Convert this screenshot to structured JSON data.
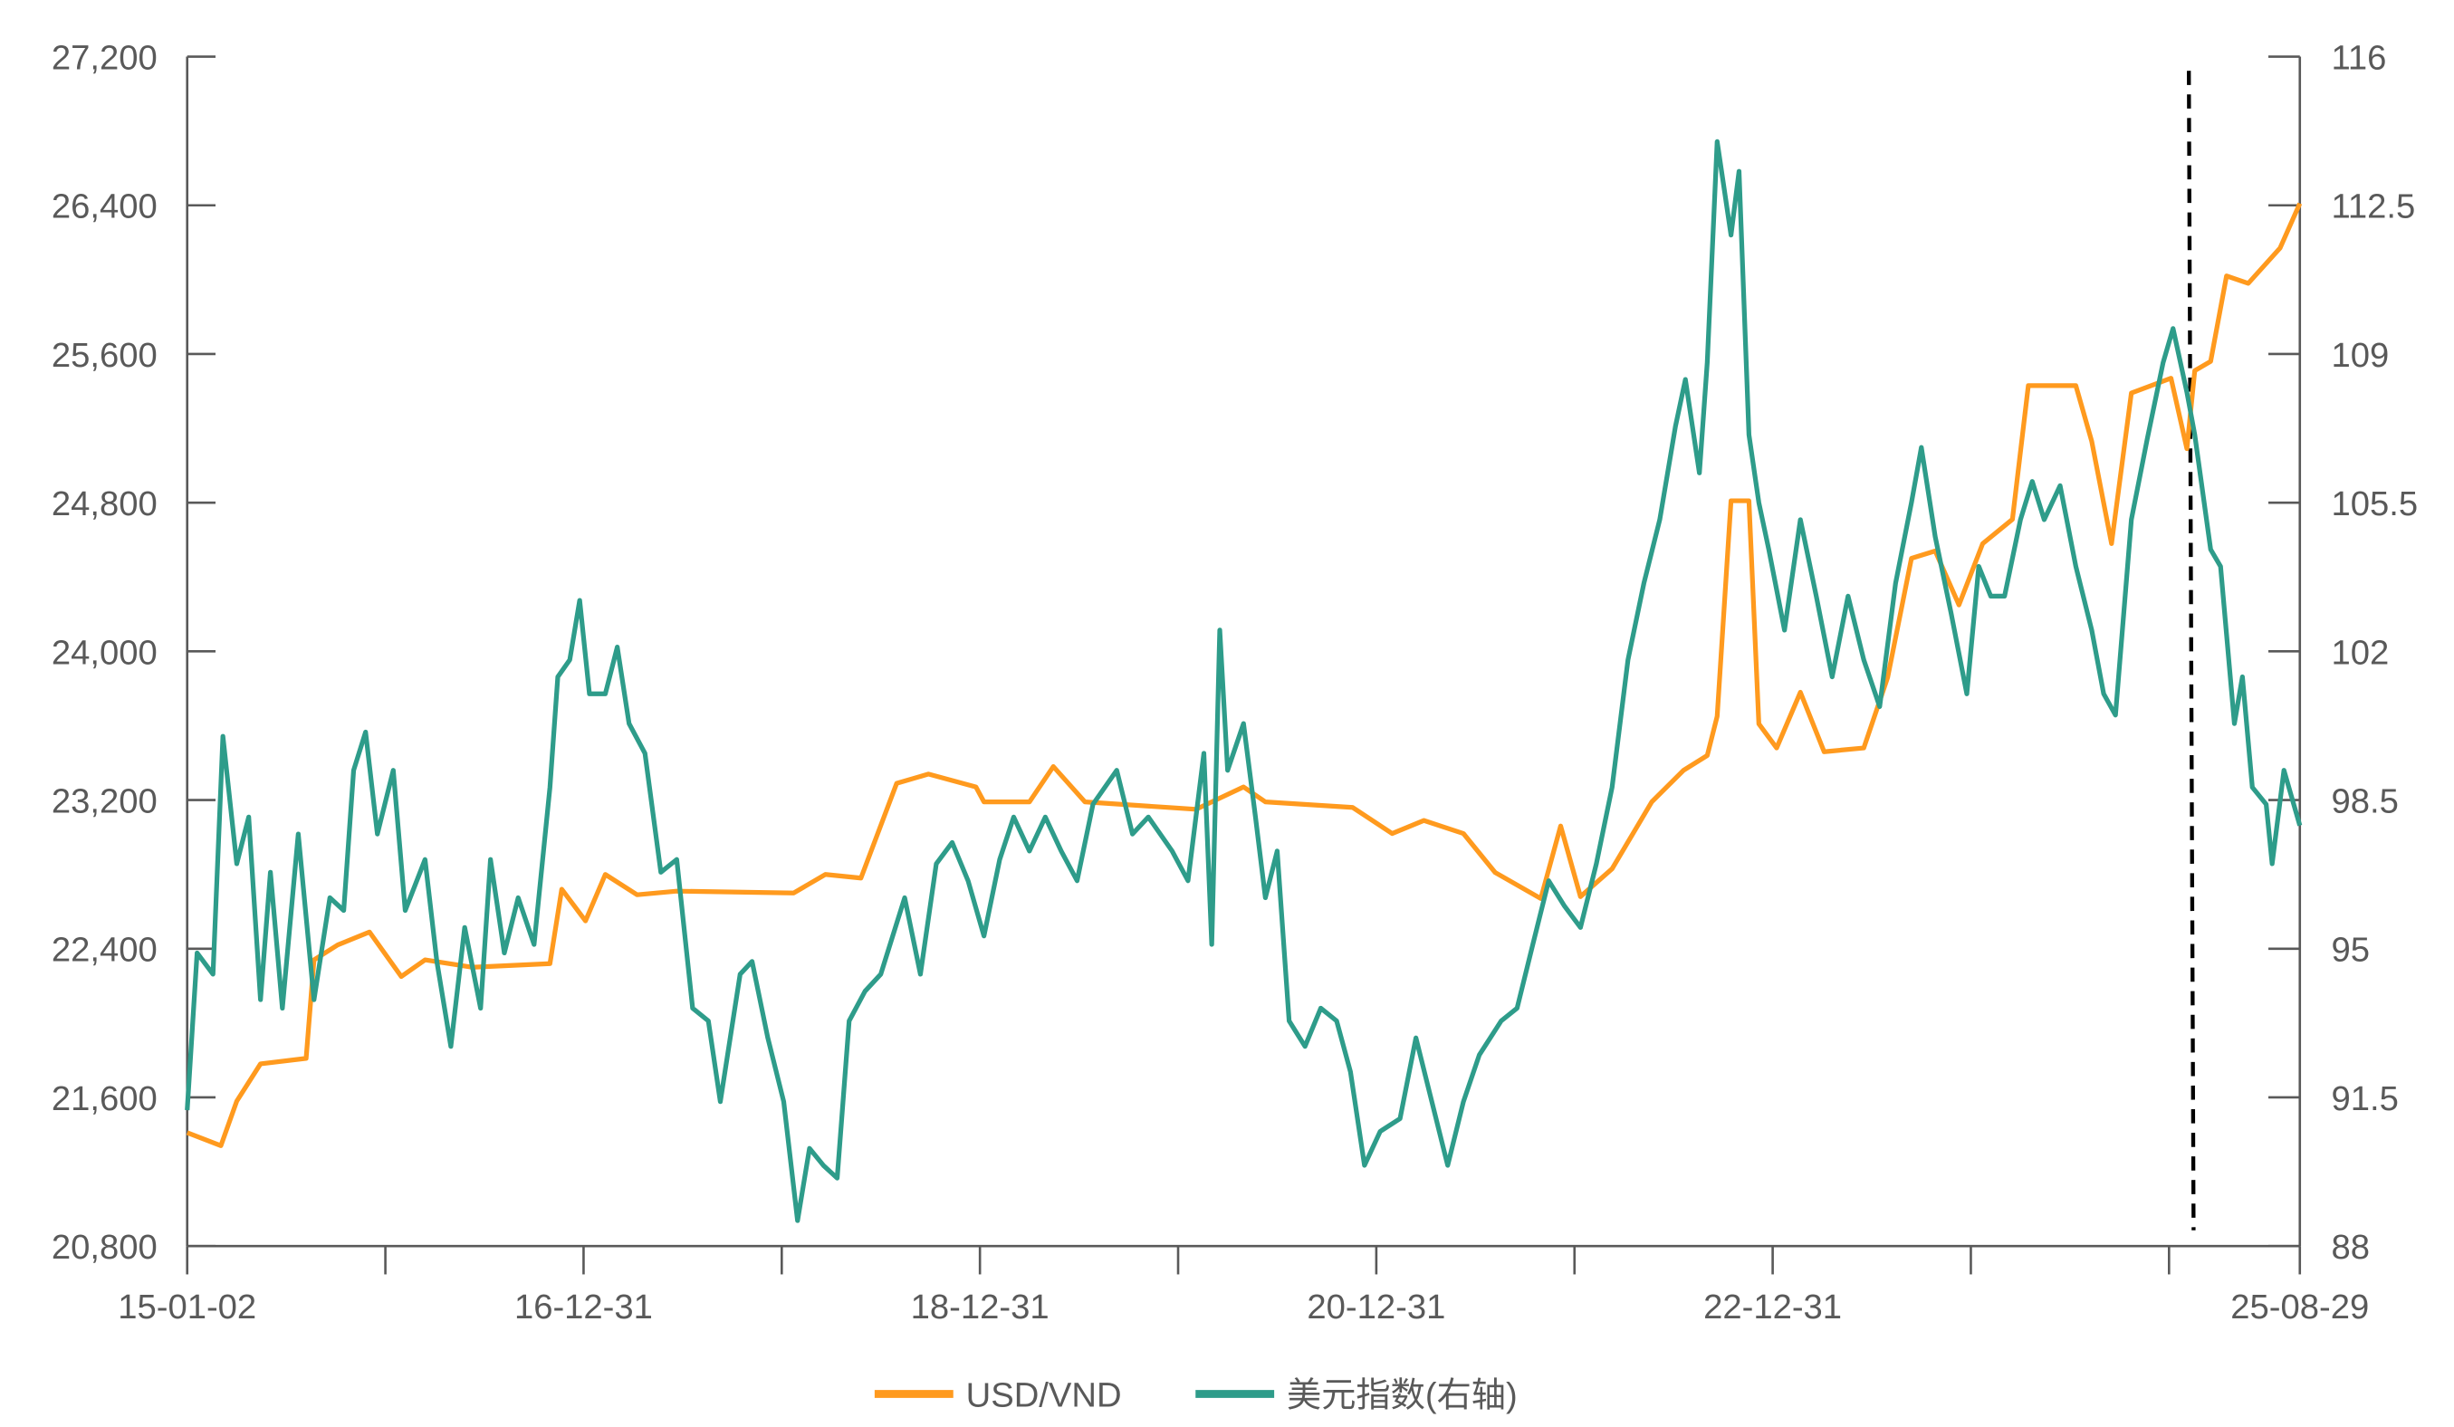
{
  "chart_data": {
    "type": "line",
    "title": "",
    "xlabel": "",
    "ylabel": "",
    "xlim": [
      2015.0,
      2025.66
    ],
    "ylim_left": [
      20800,
      27200
    ],
    "ylim_right": [
      88,
      116
    ],
    "left_ticks": [
      "20,800",
      "21,600",
      "22,400",
      "23,200",
      "24,000",
      "24,800",
      "25,600",
      "26,400",
      "27,200"
    ],
    "left_tick_values": [
      20800,
      21600,
      22400,
      23200,
      24000,
      24800,
      25600,
      26400,
      27200
    ],
    "right_ticks": [
      "88",
      "91.5",
      "95",
      "98.5",
      "102",
      "105.5",
      "109",
      "112.5",
      "116"
    ],
    "right_tick_values": [
      88,
      91.5,
      95,
      98.5,
      102,
      105.5,
      109,
      112.5,
      116
    ],
    "x_tick_values": [
      2015,
      2016,
      2017,
      2018,
      2019,
      2020,
      2021,
      2022,
      2023,
      2024,
      2025,
      2025.66
    ],
    "x_labels": [
      {
        "x": 2015.0,
        "label": "15-01-02"
      },
      {
        "x": 2017.0,
        "label": "16-12-31"
      },
      {
        "x": 2019.0,
        "label": "18-12-31"
      },
      {
        "x": 2021.0,
        "label": "20-12-31"
      },
      {
        "x": 2023.0,
        "label": "22-12-31"
      },
      {
        "x": 2025.66,
        "label": "25-08-29"
      }
    ],
    "marker_line_x": 2025.1,
    "legend_position": "bottom",
    "series": [
      {
        "name": "USD/VND",
        "axis": "left",
        "color": "#FF9A1E",
        "points": [
          [
            2015.0,
            21410
          ],
          [
            2015.17,
            21340
          ],
          [
            2015.25,
            21580
          ],
          [
            2015.37,
            21780
          ],
          [
            2015.6,
            21810
          ],
          [
            2015.64,
            22340
          ],
          [
            2015.76,
            22420
          ],
          [
            2015.92,
            22490
          ],
          [
            2016.08,
            22250
          ],
          [
            2016.2,
            22340
          ],
          [
            2016.44,
            22300
          ],
          [
            2016.83,
            22320
          ],
          [
            2016.89,
            22720
          ],
          [
            2017.01,
            22550
          ],
          [
            2017.11,
            22800
          ],
          [
            2017.27,
            22690
          ],
          [
            2017.47,
            22710
          ],
          [
            2018.06,
            22700
          ],
          [
            2018.22,
            22800
          ],
          [
            2018.4,
            22780
          ],
          [
            2018.58,
            23290
          ],
          [
            2018.74,
            23340
          ],
          [
            2018.98,
            23270
          ],
          [
            2019.02,
            23190
          ],
          [
            2019.25,
            23190
          ],
          [
            2019.37,
            23380
          ],
          [
            2019.53,
            23190
          ],
          [
            2020.09,
            23150
          ],
          [
            2020.33,
            23270
          ],
          [
            2020.44,
            23190
          ],
          [
            2020.88,
            23160
          ],
          [
            2021.08,
            23020
          ],
          [
            2021.24,
            23090
          ],
          [
            2021.44,
            23020
          ],
          [
            2021.6,
            22810
          ],
          [
            2021.83,
            22670
          ],
          [
            2021.93,
            23060
          ],
          [
            2022.03,
            22680
          ],
          [
            2022.19,
            22830
          ],
          [
            2022.39,
            23190
          ],
          [
            2022.55,
            23360
          ],
          [
            2022.67,
            23440
          ],
          [
            2022.72,
            23650
          ],
          [
            2022.79,
            24810
          ],
          [
            2022.88,
            24810
          ],
          [
            2022.93,
            23610
          ],
          [
            2023.02,
            23480
          ],
          [
            2023.14,
            23780
          ],
          [
            2023.26,
            23460
          ],
          [
            2023.46,
            23480
          ],
          [
            2023.58,
            23860
          ],
          [
            2023.7,
            24500
          ],
          [
            2023.82,
            24540
          ],
          [
            2023.94,
            24250
          ],
          [
            2024.06,
            24580
          ],
          [
            2024.21,
            24710
          ],
          [
            2024.29,
            25430
          ],
          [
            2024.53,
            25430
          ],
          [
            2024.61,
            25130
          ],
          [
            2024.71,
            24580
          ],
          [
            2024.81,
            25390
          ],
          [
            2025.01,
            25470
          ],
          [
            2025.09,
            25090
          ],
          [
            2025.13,
            25510
          ],
          [
            2025.21,
            25560
          ],
          [
            2025.29,
            26020
          ],
          [
            2025.4,
            25980
          ],
          [
            2025.56,
            26170
          ],
          [
            2025.66,
            26410
          ]
        ]
      },
      {
        "name": "美元指数(右轴)",
        "axis": "right",
        "color": "#2E9C8A",
        "points": [
          [
            2015.0,
            91.2
          ],
          [
            2015.05,
            94.9
          ],
          [
            2015.13,
            94.4
          ],
          [
            2015.18,
            100.0
          ],
          [
            2015.25,
            97.0
          ],
          [
            2015.31,
            98.1
          ],
          [
            2015.37,
            93.8
          ],
          [
            2015.42,
            96.8
          ],
          [
            2015.48,
            93.6
          ],
          [
            2015.56,
            97.7
          ],
          [
            2015.64,
            93.8
          ],
          [
            2015.72,
            96.2
          ],
          [
            2015.79,
            95.9
          ],
          [
            2015.84,
            99.2
          ],
          [
            2015.9,
            100.1
          ],
          [
            2015.96,
            97.7
          ],
          [
            2016.04,
            99.2
          ],
          [
            2016.1,
            95.9
          ],
          [
            2016.2,
            97.1
          ],
          [
            2016.26,
            94.7
          ],
          [
            2016.33,
            92.7
          ],
          [
            2016.4,
            95.5
          ],
          [
            2016.48,
            93.6
          ],
          [
            2016.53,
            97.1
          ],
          [
            2016.6,
            94.9
          ],
          [
            2016.67,
            96.2
          ],
          [
            2016.75,
            95.1
          ],
          [
            2016.83,
            98.8
          ],
          [
            2016.87,
            101.4
          ],
          [
            2016.93,
            101.8
          ],
          [
            2016.98,
            103.2
          ],
          [
            2017.03,
            101.0
          ],
          [
            2017.11,
            101.0
          ],
          [
            2017.17,
            102.1
          ],
          [
            2017.23,
            100.3
          ],
          [
            2017.31,
            99.6
          ],
          [
            2017.39,
            96.8
          ],
          [
            2017.47,
            97.1
          ],
          [
            2017.55,
            93.6
          ],
          [
            2017.63,
            93.3
          ],
          [
            2017.69,
            91.4
          ],
          [
            2017.79,
            94.4
          ],
          [
            2017.85,
            94.7
          ],
          [
            2017.93,
            92.9
          ],
          [
            2018.01,
            91.4
          ],
          [
            2018.08,
            88.6
          ],
          [
            2018.14,
            90.3
          ],
          [
            2018.21,
            89.9
          ],
          [
            2018.28,
            89.6
          ],
          [
            2018.34,
            93.3
          ],
          [
            2018.42,
            94.0
          ],
          [
            2018.5,
            94.4
          ],
          [
            2018.62,
            96.2
          ],
          [
            2018.7,
            94.4
          ],
          [
            2018.78,
            97.0
          ],
          [
            2018.86,
            97.5
          ],
          [
            2018.94,
            96.6
          ],
          [
            2019.02,
            95.3
          ],
          [
            2019.1,
            97.1
          ],
          [
            2019.17,
            98.1
          ],
          [
            2019.25,
            97.3
          ],
          [
            2019.33,
            98.1
          ],
          [
            2019.41,
            97.3
          ],
          [
            2019.49,
            96.6
          ],
          [
            2019.57,
            98.4
          ],
          [
            2019.69,
            99.2
          ],
          [
            2019.77,
            97.7
          ],
          [
            2019.85,
            98.1
          ],
          [
            2019.97,
            97.3
          ],
          [
            2020.05,
            96.6
          ],
          [
            2020.13,
            99.6
          ],
          [
            2020.17,
            95.1
          ],
          [
            2020.21,
            102.5
          ],
          [
            2020.25,
            99.2
          ],
          [
            2020.33,
            100.3
          ],
          [
            2020.39,
            98.1
          ],
          [
            2020.44,
            96.2
          ],
          [
            2020.5,
            97.3
          ],
          [
            2020.56,
            93.3
          ],
          [
            2020.64,
            92.7
          ],
          [
            2020.72,
            93.6
          ],
          [
            2020.8,
            93.3
          ],
          [
            2020.87,
            92.1
          ],
          [
            2020.94,
            89.9
          ],
          [
            2021.02,
            90.7
          ],
          [
            2021.12,
            91.0
          ],
          [
            2021.2,
            92.9
          ],
          [
            2021.28,
            91.4
          ],
          [
            2021.36,
            89.9
          ],
          [
            2021.44,
            91.4
          ],
          [
            2021.52,
            92.5
          ],
          [
            2021.63,
            93.3
          ],
          [
            2021.71,
            93.6
          ],
          [
            2021.79,
            95.1
          ],
          [
            2021.87,
            96.6
          ],
          [
            2021.95,
            96.0
          ],
          [
            2022.03,
            95.5
          ],
          [
            2022.11,
            97.0
          ],
          [
            2022.19,
            98.8
          ],
          [
            2022.27,
            101.8
          ],
          [
            2022.35,
            103.6
          ],
          [
            2022.43,
            105.1
          ],
          [
            2022.51,
            107.3
          ],
          [
            2022.56,
            108.4
          ],
          [
            2022.63,
            106.2
          ],
          [
            2022.67,
            108.8
          ],
          [
            2022.72,
            114.0
          ],
          [
            2022.79,
            111.8
          ],
          [
            2022.83,
            113.3
          ],
          [
            2022.88,
            107.1
          ],
          [
            2022.93,
            105.5
          ],
          [
            2022.98,
            104.4
          ],
          [
            2023.06,
            102.5
          ],
          [
            2023.14,
            105.1
          ],
          [
            2023.22,
            103.3
          ],
          [
            2023.3,
            101.4
          ],
          [
            2023.38,
            103.3
          ],
          [
            2023.46,
            101.8
          ],
          [
            2023.54,
            100.7
          ],
          [
            2023.62,
            103.6
          ],
          [
            2023.7,
            105.5
          ],
          [
            2023.75,
            106.8
          ],
          [
            2023.82,
            104.7
          ],
          [
            2023.9,
            102.9
          ],
          [
            2023.98,
            101.0
          ],
          [
            2024.04,
            104.0
          ],
          [
            2024.1,
            103.3
          ],
          [
            2024.17,
            103.3
          ],
          [
            2024.25,
            105.1
          ],
          [
            2024.31,
            106.0
          ],
          [
            2024.37,
            105.1
          ],
          [
            2024.45,
            105.9
          ],
          [
            2024.53,
            104.0
          ],
          [
            2024.61,
            102.5
          ],
          [
            2024.67,
            101.0
          ],
          [
            2024.73,
            100.5
          ],
          [
            2024.81,
            105.1
          ],
          [
            2024.89,
            107.0
          ],
          [
            2024.97,
            108.8
          ],
          [
            2025.02,
            109.6
          ],
          [
            2025.09,
            108.1
          ],
          [
            2025.13,
            107.1
          ],
          [
            2025.21,
            104.4
          ],
          [
            2025.26,
            104.0
          ],
          [
            2025.33,
            100.3
          ],
          [
            2025.37,
            101.4
          ],
          [
            2025.42,
            98.8
          ],
          [
            2025.49,
            98.4
          ],
          [
            2025.52,
            97.0
          ],
          [
            2025.58,
            99.2
          ],
          [
            2025.66,
            97.9
          ]
        ]
      }
    ]
  }
}
